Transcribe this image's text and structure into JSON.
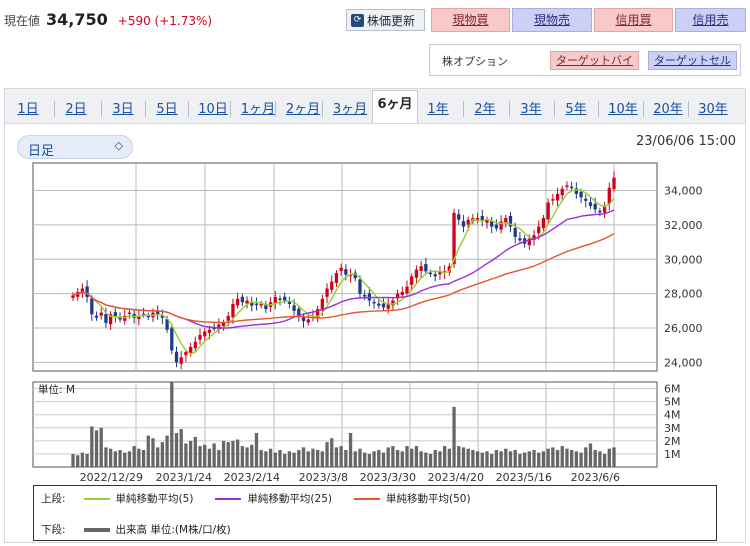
{
  "quote": {
    "label": "現在値",
    "price": "34,750",
    "change": "+590 (+1.73%)"
  },
  "toolbar": {
    "refresh_label": "株価更新",
    "buttons": [
      "現物買",
      "現物売",
      "信用買",
      "信用売"
    ]
  },
  "options": {
    "label": "株オプション",
    "target_buy": "ターゲットバイ",
    "target_sell": "ターゲットセル"
  },
  "ranges": [
    "1日",
    "2日",
    "3日",
    "5日",
    "10日",
    "1ヶ月",
    "2ヶ月",
    "3ヶ月",
    "6ヶ月",
    "1年",
    "2年",
    "3年",
    "5年",
    "10年",
    "20年",
    "30年"
  ],
  "active_range": "6ヶ月",
  "interval_select": "日足",
  "datetime": "23/06/06 15:00",
  "colors": {
    "up": "#d0021b",
    "down": "#1f3a8a",
    "ma5": "#9acd32",
    "ma25": "#9b30d9",
    "ma50": "#e4572e",
    "volume": "#666666"
  },
  "chart_data": {
    "type": "candlestick",
    "x_tick_labels": [
      "2022/12/29",
      "2023/1/24",
      "2023/2/14",
      "2023/3/8",
      "2023/3/30",
      "2023/4/20",
      "2023/5/16",
      "2023/6/6"
    ],
    "price_axis": {
      "ticks": [
        "24,000",
        "26,000",
        "28,000",
        "30,000",
        "32,000",
        "34,000"
      ],
      "ylim": [
        23500,
        35600
      ]
    },
    "volume_axis": {
      "unit_label": "単位: M",
      "ticks": [
        "1M",
        "2M",
        "3M",
        "4M",
        "5M",
        "6M"
      ],
      "ylim": [
        0,
        6.5
      ]
    },
    "close": [
      27900,
      28100,
      28300,
      27800,
      26800,
      26600,
      26900,
      26300,
      26800,
      26700,
      26500,
      26700,
      26900,
      26600,
      26700,
      26800,
      26700,
      26900,
      26800,
      26600,
      25900,
      24700,
      24000,
      24300,
      24600,
      24900,
      25200,
      25600,
      25800,
      25900,
      26000,
      26200,
      26300,
      26700,
      27400,
      27700,
      27500,
      27600,
      27300,
      27400,
      27400,
      27100,
      27500,
      27800,
      27700,
      27600,
      27400,
      27000,
      26700,
      26400,
      26500,
      26700,
      27100,
      27700,
      28300,
      28700,
      29200,
      29500,
      29100,
      29100,
      28900,
      28000,
      27900,
      27600,
      27500,
      27300,
      27200,
      27400,
      27600,
      28000,
      28100,
      28400,
      29000,
      29400,
      29600,
      29300,
      29200,
      29000,
      29300,
      29300,
      29600,
      32700,
      32300,
      31900,
      32300,
      32400,
      32400,
      32200,
      32300,
      31900,
      31800,
      32200,
      32400,
      31900,
      31300,
      31100,
      30900,
      31200,
      31400,
      31900,
      32400,
      33300,
      33500,
      33800,
      34100,
      34300,
      34200,
      33800,
      33600,
      33400,
      33100,
      32900,
      32800,
      33100,
      34160,
      34750
    ],
    "volume": [
      1.0,
      0.9,
      1.1,
      1.0,
      3.1,
      2.8,
      3.0,
      1.5,
      1.4,
      1.2,
      1.3,
      1.1,
      1.2,
      1.6,
      1.4,
      1.3,
      2.4,
      2.2,
      1.5,
      1.9,
      2.4,
      6.5,
      2.6,
      2.9,
      1.8,
      2.0,
      2.3,
      1.6,
      1.7,
      1.4,
      1.8,
      1.3,
      2.0,
      1.9,
      2.0,
      2.1,
      1.6,
      1.5,
      1.7,
      2.6,
      1.3,
      1.2,
      1.4,
      1.1,
      1.3,
      1.0,
      1.2,
      1.1,
      1.3,
      1.5,
      1.2,
      1.4,
      1.3,
      1.2,
      1.9,
      2.2,
      1.5,
      1.6,
      1.3,
      2.6,
      1.2,
      1.4,
      1.1,
      1.0,
      1.2,
      1.3,
      1.1,
      1.5,
      1.6,
      1.3,
      1.2,
      1.6,
      1.4,
      1.6,
      1.2,
      1.1,
      1.0,
      1.3,
      1.2,
      1.6,
      1.4,
      4.6,
      1.6,
      1.5,
      1.4,
      1.3,
      1.2,
      1.1,
      1.2,
      1.0,
      1.3,
      1.2,
      1.4,
      1.2,
      1.3,
      1.0,
      1.1,
      1.2,
      1.3,
      1.1,
      1.2,
      1.4,
      1.5,
      1.3,
      1.6,
      1.4,
      1.3,
      1.2,
      1.1,
      1.5,
      1.8,
      1.3,
      1.2,
      1.0,
      1.4,
      1.5
    ],
    "series": [
      {
        "name": "単純移動平均(5)",
        "type": "ma",
        "period": 5
      },
      {
        "name": "単純移動平均(25)",
        "type": "ma",
        "period": 25
      },
      {
        "name": "単純移動平均(50)",
        "type": "ma",
        "period": 50
      }
    ]
  },
  "legend": {
    "upper_label": "上段:",
    "lower_label": "下段:",
    "ma5": "単純移動平均(5)",
    "ma25": "単純移動平均(25)",
    "ma50": "単純移動平均(50)",
    "volume": "出来高 単位:(M株/口/枚)"
  }
}
